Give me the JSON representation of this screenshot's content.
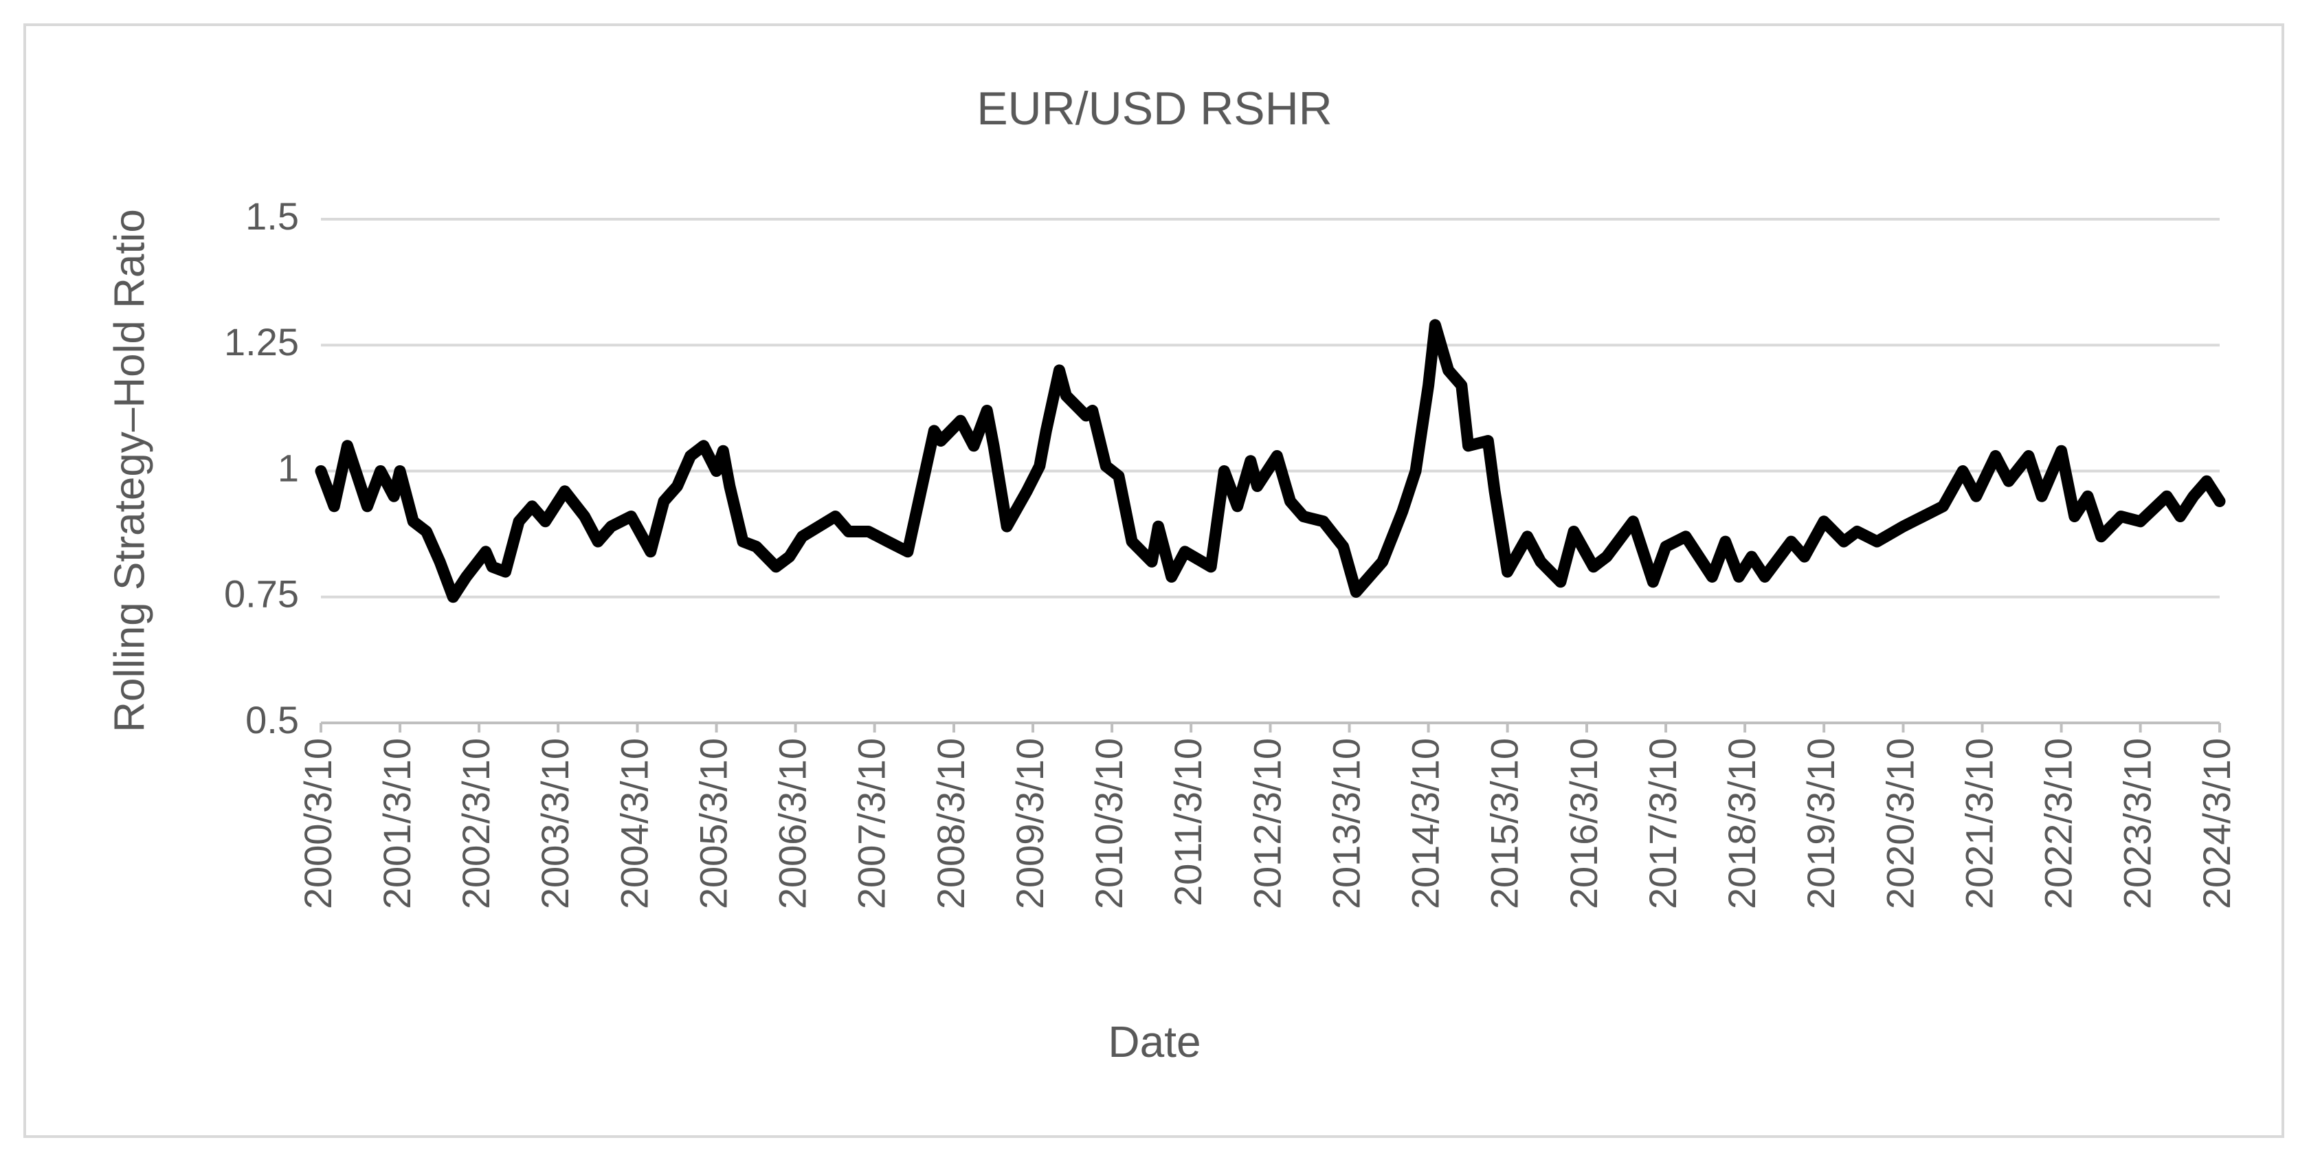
{
  "chart_data": {
    "type": "line",
    "title": "EUR/USD RSHR",
    "x_label": "Date",
    "y_label": "Rolling Strategy–Hold Ratio",
    "color": "#000000",
    "grid": true,
    "ylim": [
      0.5,
      1.5
    ],
    "yticks": [
      0.5,
      0.75,
      1,
      1.25,
      1.5
    ],
    "xlim": [
      "2000/3/10",
      "2024/3/10"
    ],
    "xticks": [
      "2000/3/10",
      "2001/3/10",
      "2002/3/10",
      "2003/3/10",
      "2004/3/10",
      "2005/3/10",
      "2006/3/10",
      "2007/3/10",
      "2008/3/10",
      "2009/3/10",
      "2010/3/10",
      "2011/3/10",
      "2012/3/10",
      "2013/3/10",
      "2014/3/10",
      "2015/3/10",
      "2016/3/10",
      "2017/3/10",
      "2018/3/10",
      "2019/3/10",
      "2020/3/10",
      "2021/3/10",
      "2022/3/10",
      "2023/3/10",
      "2024/3/10"
    ],
    "x": [
      "2000/3/10",
      "2000/5/10",
      "2000/7/10",
      "2000/10/10",
      "2000/12/10",
      "2001/2/10",
      "2001/3/10",
      "2001/5/10",
      "2001/7/10",
      "2001/9/10",
      "2001/11/10",
      "2002/1/10",
      "2002/4/10",
      "2002/5/10",
      "2002/7/10",
      "2002/9/10",
      "2002/11/10",
      "2003/1/10",
      "2003/4/10",
      "2003/7/10",
      "2003/9/10",
      "2003/11/10",
      "2004/2/10",
      "2004/5/10",
      "2004/7/10",
      "2004/9/10",
      "2004/11/10",
      "2005/1/10",
      "2005/3/10",
      "2005/4/10",
      "2005/5/10",
      "2005/7/10",
      "2005/9/10",
      "2005/12/10",
      "2006/2/10",
      "2006/4/10",
      "2006/9/10",
      "2006/11/10",
      "2007/2/10",
      "2007/5/10",
      "2007/8/10",
      "2007/10/10",
      "2007/12/10",
      "2008/1/10",
      "2008/4/10",
      "2008/6/10",
      "2008/8/10",
      "2008/9/10",
      "2008/11/10",
      "2009/2/10",
      "2009/4/10",
      "2009/5/10",
      "2009/7/10",
      "2009/8/10",
      "2009/11/10",
      "2009/12/10",
      "2010/2/10",
      "2010/4/10",
      "2010/6/10",
      "2010/9/10",
      "2010/10/10",
      "2010/12/10",
      "2011/2/10",
      "2011/6/10",
      "2011/8/10",
      "2011/10/10",
      "2011/12/10",
      "2012/1/10",
      "2012/4/10",
      "2012/6/10",
      "2012/8/10",
      "2012/11/10",
      "2013/2/10",
      "2013/4/10",
      "2013/6/10",
      "2013/8/10",
      "2013/11/10",
      "2014/1/10",
      "2014/3/10",
      "2014/4/10",
      "2014/6/10",
      "2014/8/10",
      "2014/9/10",
      "2014/12/10",
      "2015/1/10",
      "2015/3/10",
      "2015/6/10",
      "2015/8/10",
      "2015/11/10",
      "2016/1/10",
      "2016/4/10",
      "2016/6/10",
      "2016/10/10",
      "2017/1/10",
      "2017/3/10",
      "2017/6/10",
      "2017/10/10",
      "2017/12/10",
      "2018/2/10",
      "2018/4/10",
      "2018/6/10",
      "2018/10/10",
      "2018/12/10",
      "2019/3/10",
      "2019/6/10",
      "2019/8/10",
      "2019/11/10",
      "2020/3/10",
      "2020/6/10",
      "2020/9/10",
      "2020/12/10",
      "2021/2/10",
      "2021/5/10",
      "2021/7/10",
      "2021/10/10",
      "2021/12/10",
      "2022/3/10",
      "2022/5/10",
      "2022/7/10",
      "2022/9/10",
      "2022/12/10",
      "2023/3/10",
      "2023/7/10",
      "2023/9/10",
      "2023/11/10",
      "2024/1/10",
      "2024/3/10"
    ],
    "values": [
      1.0,
      0.93,
      1.05,
      0.93,
      1.0,
      0.95,
      1.0,
      0.9,
      0.88,
      0.82,
      0.75,
      0.79,
      0.84,
      0.81,
      0.8,
      0.9,
      0.93,
      0.9,
      0.96,
      0.91,
      0.86,
      0.89,
      0.91,
      0.84,
      0.94,
      0.97,
      1.03,
      1.05,
      1.0,
      1.04,
      0.97,
      0.86,
      0.85,
      0.81,
      0.83,
      0.87,
      0.91,
      0.88,
      0.88,
      0.86,
      0.84,
      0.96,
      1.08,
      1.06,
      1.1,
      1.05,
      1.12,
      1.05,
      0.89,
      0.96,
      1.01,
      1.08,
      1.2,
      1.15,
      1.11,
      1.12,
      1.01,
      0.99,
      0.86,
      0.82,
      0.89,
      0.79,
      0.84,
      0.81,
      1.0,
      0.93,
      1.02,
      0.97,
      1.03,
      0.94,
      0.91,
      0.9,
      0.85,
      0.76,
      0.79,
      0.82,
      0.92,
      1.0,
      1.17,
      1.29,
      1.2,
      1.17,
      1.05,
      1.06,
      0.96,
      0.8,
      0.87,
      0.82,
      0.78,
      0.88,
      0.81,
      0.83,
      0.9,
      0.78,
      0.85,
      0.87,
      0.79,
      0.86,
      0.79,
      0.83,
      0.79,
      0.86,
      0.83,
      0.9,
      0.86,
      0.88,
      0.86,
      0.89,
      0.91,
      0.93,
      1.0,
      0.95,
      1.03,
      0.98,
      1.03,
      0.95,
      1.04,
      0.91,
      0.95,
      0.87,
      0.91,
      0.9,
      0.95,
      0.91,
      0.95,
      0.98,
      0.94
    ]
  }
}
